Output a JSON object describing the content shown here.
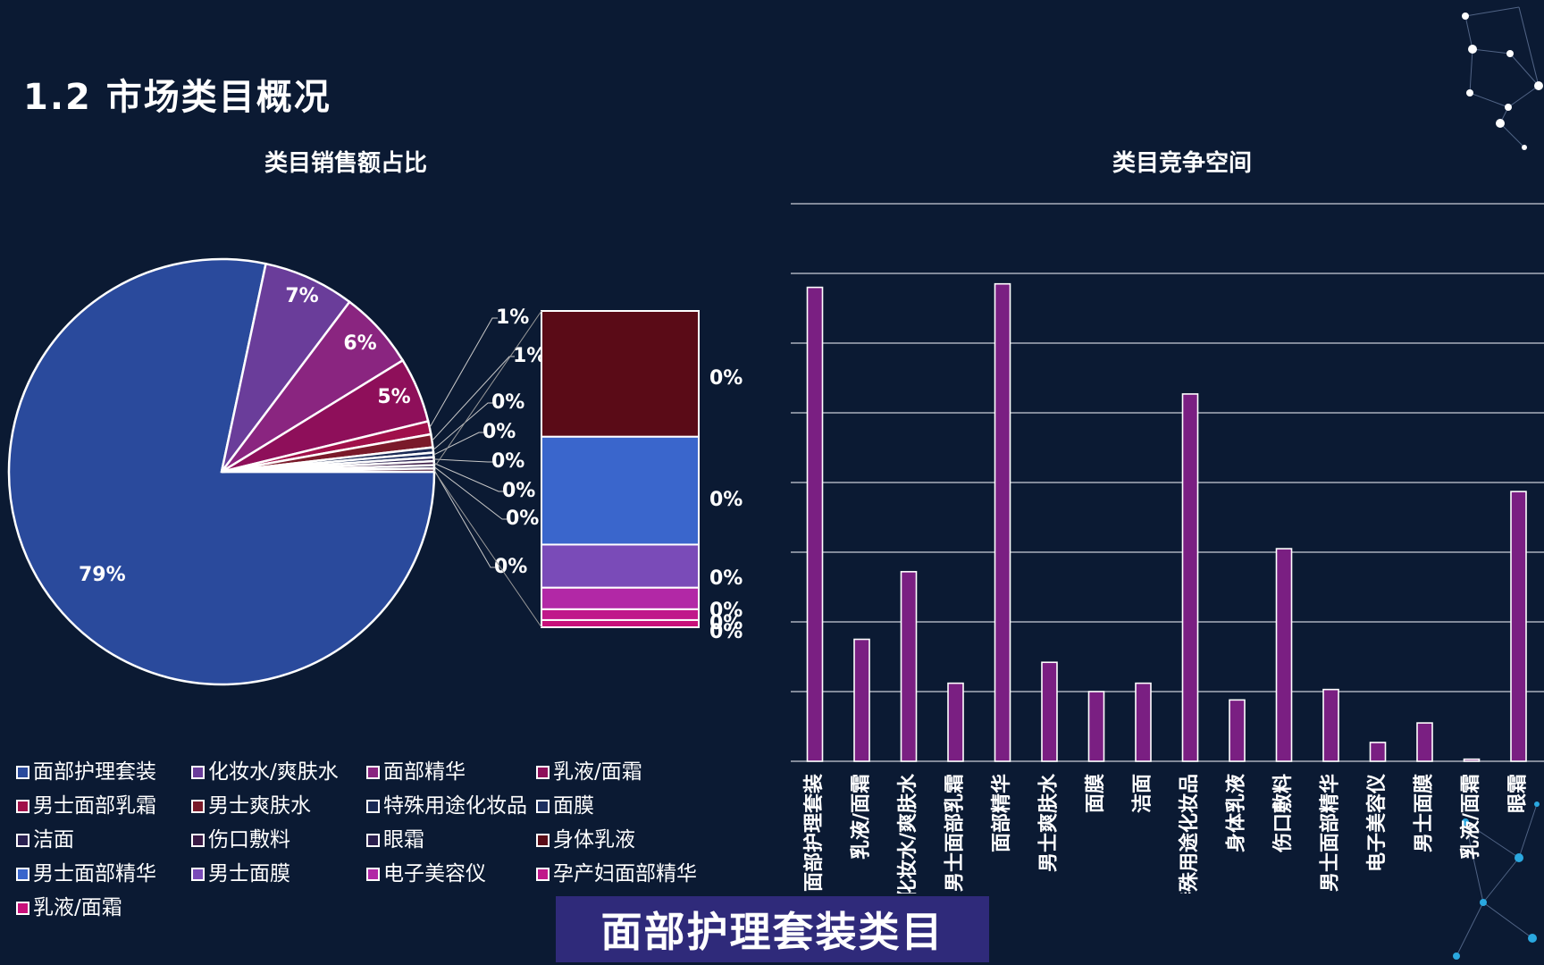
{
  "slide": {
    "title": "1.2 市场类目概况",
    "caption": "面部护理套装类目"
  },
  "chart_data": [
    {
      "type": "pie",
      "title": "类目销售额占比",
      "slices": [
        {
          "label": "面部护理套装",
          "value": 79,
          "data_label": "79%",
          "color": "#2a4a9c"
        },
        {
          "label": "化妆水/爽肤水",
          "value": 7,
          "data_label": "7%",
          "color": "#6a3d9a"
        },
        {
          "label": "面部精华",
          "value": 6,
          "data_label": "6%",
          "color": "#8a2580"
        },
        {
          "label": "乳液/面霜",
          "value": 5,
          "data_label": "5%",
          "color": "#8e0f5a"
        },
        {
          "label": "男士面部乳霜",
          "value": 1,
          "data_label": "1%",
          "color": "#a0104a"
        },
        {
          "label": "男士爽肤水",
          "value": 1,
          "data_label": "1%",
          "color": "#7a1a2a"
        },
        {
          "label": "特殊用途化妆品",
          "value": 0.4,
          "data_label": "0%",
          "color": "#1a2a55"
        },
        {
          "label": "面膜",
          "value": 0.35,
          "data_label": "0%",
          "color": "#1d2f60"
        },
        {
          "label": "洁面",
          "value": 0.3,
          "data_label": "0%",
          "color": "#2a2050"
        },
        {
          "label": "伤口敷料",
          "value": 0.3,
          "data_label": "0%",
          "color": "#3a1a45"
        },
        {
          "label": "眼霜",
          "value": 0.25,
          "data_label": "0%",
          "color": "#2b1e4d"
        },
        {
          "label": "身体乳液",
          "value": 0.25,
          "data_label": "0%",
          "color": "#4a1535"
        }
      ],
      "secondary_stack": [
        {
          "label": "身体乳液",
          "value": 0.35,
          "data_label": "0%",
          "color": "#5a0b17"
        },
        {
          "label": "男士面部精华",
          "value": 0.3,
          "data_label": "0%",
          "color": "#3a66cc"
        },
        {
          "label": "男士面膜",
          "value": 0.12,
          "data_label": "0%",
          "color": "#7a4bb8"
        },
        {
          "label": "电子美容仪",
          "value": 0.06,
          "data_label": "0%",
          "color": "#b228a6"
        },
        {
          "label": "孕产妇面部精华",
          "value": 0.03,
          "data_label": "0%",
          "color": "#c0188a"
        },
        {
          "label": "乳液/面霜",
          "value": 0.02,
          "data_label": "0%",
          "color": "#c8107a"
        }
      ],
      "legend": [
        {
          "label": "面部护理套装",
          "color": "#2a4a9c"
        },
        {
          "label": "化妆水/爽肤水",
          "color": "#6a3d9a"
        },
        {
          "label": "面部精华",
          "color": "#8a2580"
        },
        {
          "label": "乳液/面霜",
          "color": "#8e0f5a"
        },
        {
          "label": "男士面部乳霜",
          "color": "#a0104a"
        },
        {
          "label": "男士爽肤水",
          "color": "#7a1a2a"
        },
        {
          "label": "特殊用途化妆品",
          "color": "#1a2a55"
        },
        {
          "label": "面膜",
          "color": "#1d2f60"
        },
        {
          "label": "洁面",
          "color": "#2a2050"
        },
        {
          "label": "伤口敷料",
          "color": "#3a1a45"
        },
        {
          "label": "眼霜",
          "color": "#2b1e4d"
        },
        {
          "label": "身体乳液",
          "color": "#5a0b17"
        },
        {
          "label": "男士面部精华",
          "color": "#3a66cc"
        },
        {
          "label": "男士面膜",
          "color": "#7a4bb8"
        },
        {
          "label": "电子美容仪",
          "color": "#b228a6"
        },
        {
          "label": "孕产妇面部精华",
          "color": "#c0188a"
        },
        {
          "label": "乳液/面霜",
          "color": "#c8107a"
        }
      ]
    },
    {
      "type": "bar",
      "title": "类目竞争空间",
      "categories": [
        "面部护理套装",
        "乳液/面霜",
        "化妆水/爽肤水",
        "男士面部乳霜",
        "面部精华",
        "男士爽肤水",
        "面膜",
        "洁面",
        "特殊用途化妆品",
        "身体乳液",
        "伤口敷料",
        "男士面部精华",
        "电子美容仪",
        "男士面膜",
        "乳液/面霜",
        "眼霜"
      ],
      "values": [
        6.8,
        1.75,
        2.72,
        1.12,
        6.85,
        1.42,
        1.0,
        1.12,
        5.27,
        0.88,
        3.05,
        1.03,
        0.27,
        0.55,
        0.03,
        3.87
      ],
      "ylim": [
        0,
        8
      ],
      "grid": true,
      "bar_color": "#7a1f82"
    }
  ]
}
